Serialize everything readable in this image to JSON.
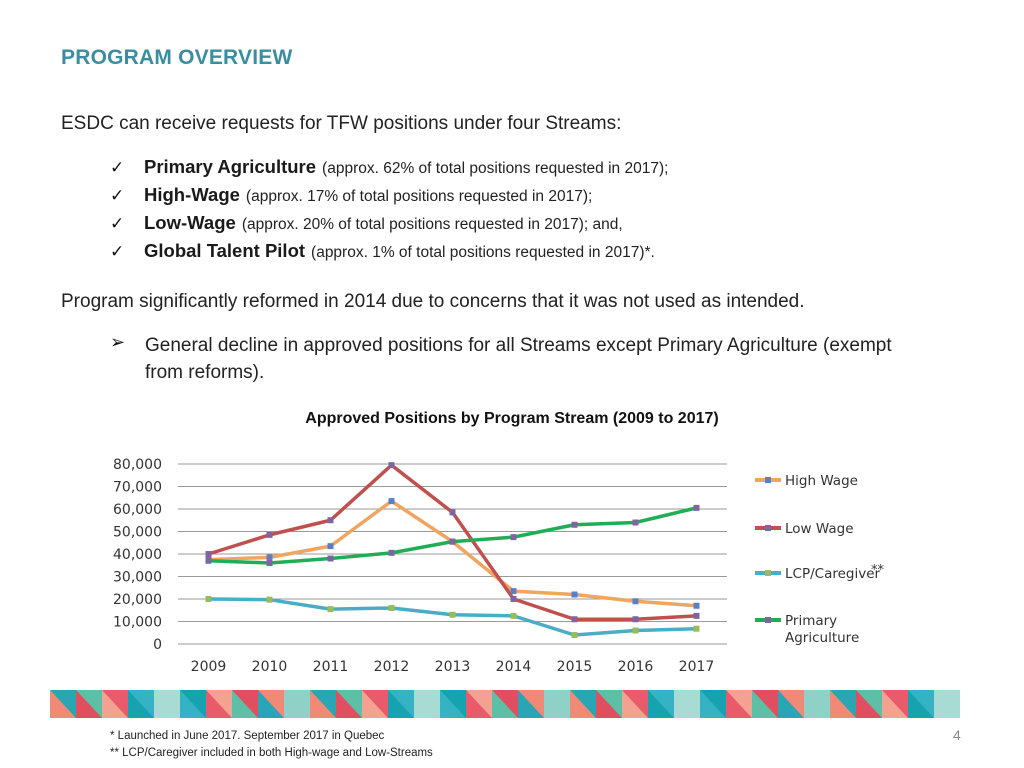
{
  "slide": {
    "title": "PROGRAM OVERVIEW",
    "intro": "ESDC can receive requests for TFW positions under four Streams:",
    "check_icon": "checkmark-icon",
    "streams": [
      {
        "name": "Primary Agriculture",
        "note": "(approx. 62% of total positions requested in 2017);"
      },
      {
        "name": "High-Wage",
        "note": "(approx. 17% of total positions requested in 2017);"
      },
      {
        "name": "Low-Wage",
        "note": "(approx. 20% of total positions requested in 2017); and,"
      },
      {
        "name": "Global Talent Pilot",
        "note": "(approx. 1% of total positions requested in 2017)*."
      }
    ],
    "para2": "Program significantly reformed in 2014 due to concerns that it was not used as intended.",
    "arrow_icon": "arrow-bullet-icon",
    "sub_bullet": "General decline in approved positions for all Streams except Primary Agriculture (exempt from reforms).",
    "chart_title": "Approved Positions by Program Stream (2009 to 2017)",
    "footnote1": "*  Launched in June 2017.  September 2017 in Quebec",
    "footnote2": "** LCP/Caregiver included in both High-wage and Low-Streams",
    "page_number": "4",
    "banner_colors": [
      "#2aa5b4",
      "#5cbfa6",
      "#a8dbd3",
      "#e04e5f",
      "#f08a76",
      "#35b3c4",
      "#e95a6b",
      "#8fd1c6",
      "#f3a190",
      "#16a3b0"
    ]
  },
  "chart_data": {
    "type": "line",
    "title": "Approved Positions by Program Stream (2009 to 2017)",
    "x": [
      "2009",
      "2010",
      "2011",
      "2012",
      "2013",
      "2014",
      "2015",
      "2016",
      "2017"
    ],
    "ylim": [
      0,
      80000
    ],
    "yticks": [
      "0",
      "10,000",
      "20,000",
      "30,000",
      "40,000",
      "50,000",
      "60,000",
      "70,000",
      "80,000"
    ],
    "grid": true,
    "legend_position": "right",
    "legend_suffix": "**",
    "series": [
      {
        "name": "High Wage",
        "color": "#f0a560",
        "marker_color": "#5b7fc7",
        "values": [
          37500,
          38500,
          43500,
          63500,
          45500,
          23500,
          22000,
          19000,
          17000
        ]
      },
      {
        "name": "Low Wage",
        "color": "#c0504d",
        "marker_color": "#8064a2",
        "values": [
          40000,
          48500,
          55000,
          79500,
          58500,
          20000,
          11000,
          11000,
          12500
        ]
      },
      {
        "name": "LCP/Caregiver",
        "color": "#4bacc6",
        "marker_color": "#9bbb59",
        "values": [
          20000,
          19700,
          15500,
          16000,
          13000,
          12500,
          4000,
          6000,
          6800
        ]
      },
      {
        "name": "Primary Agriculture",
        "color": "#1fae56",
        "marker_color": "#8064a2",
        "values": [
          37000,
          36000,
          38000,
          40500,
          45500,
          47500,
          53000,
          54000,
          60500
        ]
      }
    ]
  }
}
